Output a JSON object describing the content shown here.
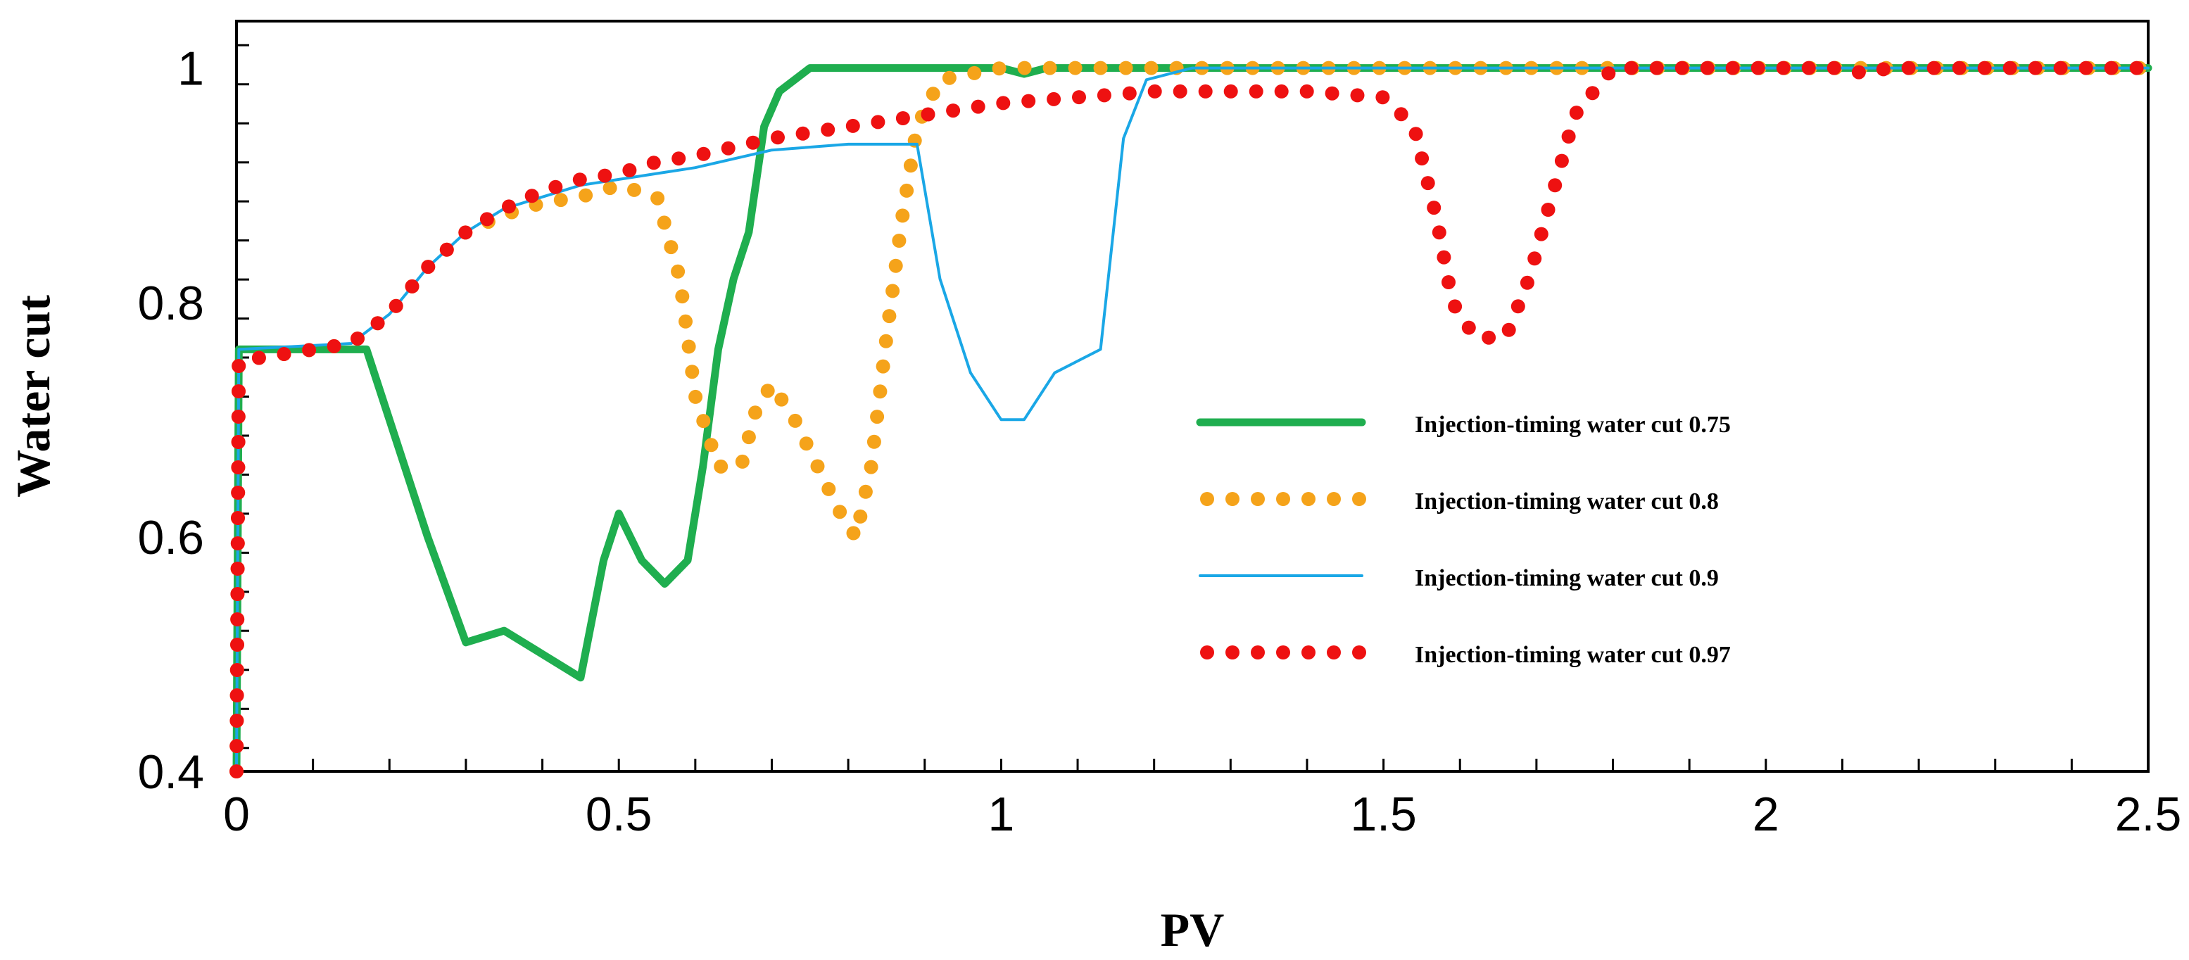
{
  "chart_data": {
    "type": "line",
    "title": "",
    "xlabel": "PV",
    "ylabel": "Water cut",
    "xlim": [
      0,
      2.5
    ],
    "ylim": [
      0.4,
      1.04
    ],
    "x_ticks": [
      "0",
      "0.5",
      "1",
      "1.5",
      "2",
      "2.5"
    ],
    "y_ticks": [
      "0.4",
      "0.6",
      "0.8",
      "1"
    ],
    "legend_position": "center-right",
    "series": [
      {
        "name": "Injection-timing water cut 0.75",
        "style": "solid-thick",
        "color": "#1fae4f",
        "points": [
          [
            0,
            0.4
          ],
          [
            0.003,
            0.76
          ],
          [
            0.17,
            0.76
          ],
          [
            0.2,
            0.7
          ],
          [
            0.25,
            0.6
          ],
          [
            0.3,
            0.51
          ],
          [
            0.35,
            0.52
          ],
          [
            0.4,
            0.5
          ],
          [
            0.45,
            0.48
          ],
          [
            0.48,
            0.58
          ],
          [
            0.5,
            0.62
          ],
          [
            0.53,
            0.58
          ],
          [
            0.56,
            0.56
          ],
          [
            0.59,
            0.58
          ],
          [
            0.61,
            0.66
          ],
          [
            0.63,
            0.76
          ],
          [
            0.65,
            0.82
          ],
          [
            0.67,
            0.86
          ],
          [
            0.69,
            0.95
          ],
          [
            0.71,
            0.98
          ],
          [
            0.75,
            1.0
          ],
          [
            0.85,
            1.0
          ],
          [
            1.0,
            1.0
          ],
          [
            1.03,
            0.995
          ],
          [
            1.06,
            1.0
          ],
          [
            2.5,
            1.0
          ]
        ]
      },
      {
        "name": "Injection-timing water cut 0.8",
        "style": "dotted",
        "color": "#f5a31a",
        "points": [
          [
            0,
            0.4
          ],
          [
            0.003,
            0.75
          ],
          [
            0.15,
            0.765
          ],
          [
            0.2,
            0.79
          ],
          [
            0.25,
            0.83
          ],
          [
            0.3,
            0.86
          ],
          [
            0.35,
            0.875
          ],
          [
            0.4,
            0.885
          ],
          [
            0.45,
            0.89
          ],
          [
            0.5,
            0.9
          ],
          [
            0.55,
            0.89
          ],
          [
            0.58,
            0.82
          ],
          [
            0.6,
            0.72
          ],
          [
            0.63,
            0.66
          ],
          [
            0.66,
            0.66
          ],
          [
            0.68,
            0.71
          ],
          [
            0.7,
            0.73
          ],
          [
            0.73,
            0.7
          ],
          [
            0.76,
            0.66
          ],
          [
            0.79,
            0.62
          ],
          [
            0.81,
            0.6
          ],
          [
            0.83,
            0.66
          ],
          [
            0.85,
            0.77
          ],
          [
            0.87,
            0.87
          ],
          [
            0.89,
            0.95
          ],
          [
            0.92,
            0.99
          ],
          [
            1.0,
            1.0
          ],
          [
            2.5,
            1.0
          ]
        ]
      },
      {
        "name": "Injection-timing water cut 0.9",
        "style": "solid-thin",
        "color": "#1aa7e6",
        "points": [
          [
            0,
            0.4
          ],
          [
            0.003,
            0.76
          ],
          [
            0.15,
            0.765
          ],
          [
            0.2,
            0.79
          ],
          [
            0.25,
            0.83
          ],
          [
            0.3,
            0.86
          ],
          [
            0.35,
            0.88
          ],
          [
            0.4,
            0.89
          ],
          [
            0.45,
            0.9
          ],
          [
            0.5,
            0.905
          ],
          [
            0.55,
            0.91
          ],
          [
            0.6,
            0.915
          ],
          [
            0.7,
            0.93
          ],
          [
            0.8,
            0.935
          ],
          [
            0.89,
            0.935
          ],
          [
            0.92,
            0.82
          ],
          [
            0.96,
            0.74
          ],
          [
            1.0,
            0.7
          ],
          [
            1.03,
            0.7
          ],
          [
            1.07,
            0.74
          ],
          [
            1.1,
            0.75
          ],
          [
            1.13,
            0.76
          ],
          [
            1.16,
            0.94
          ],
          [
            1.19,
            0.99
          ],
          [
            1.25,
            1.0
          ],
          [
            2.5,
            1.0
          ]
        ]
      },
      {
        "name": "Injection-timing water cut 0.97",
        "style": "dotted",
        "color": "#ee1111",
        "points": [
          [
            0,
            0.4
          ],
          [
            0.003,
            0.75
          ],
          [
            0.15,
            0.765
          ],
          [
            0.2,
            0.79
          ],
          [
            0.25,
            0.83
          ],
          [
            0.3,
            0.86
          ],
          [
            0.35,
            0.88
          ],
          [
            0.4,
            0.895
          ],
          [
            0.45,
            0.905
          ],
          [
            0.5,
            0.91
          ],
          [
            0.55,
            0.92
          ],
          [
            0.6,
            0.925
          ],
          [
            0.7,
            0.94
          ],
          [
            0.8,
            0.95
          ],
          [
            0.9,
            0.96
          ],
          [
            1.0,
            0.97
          ],
          [
            1.1,
            0.975
          ],
          [
            1.2,
            0.98
          ],
          [
            1.3,
            0.98
          ],
          [
            1.4,
            0.98
          ],
          [
            1.5,
            0.975
          ],
          [
            1.54,
            0.95
          ],
          [
            1.57,
            0.87
          ],
          [
            1.59,
            0.8
          ],
          [
            1.62,
            0.77
          ],
          [
            1.66,
            0.77
          ],
          [
            1.69,
            0.82
          ],
          [
            1.72,
            0.89
          ],
          [
            1.75,
            0.96
          ],
          [
            1.8,
            1.0
          ],
          [
            2.1,
            1.0
          ],
          [
            2.13,
            0.995
          ],
          [
            2.16,
            1.0
          ],
          [
            2.5,
            1.0
          ]
        ]
      }
    ]
  }
}
